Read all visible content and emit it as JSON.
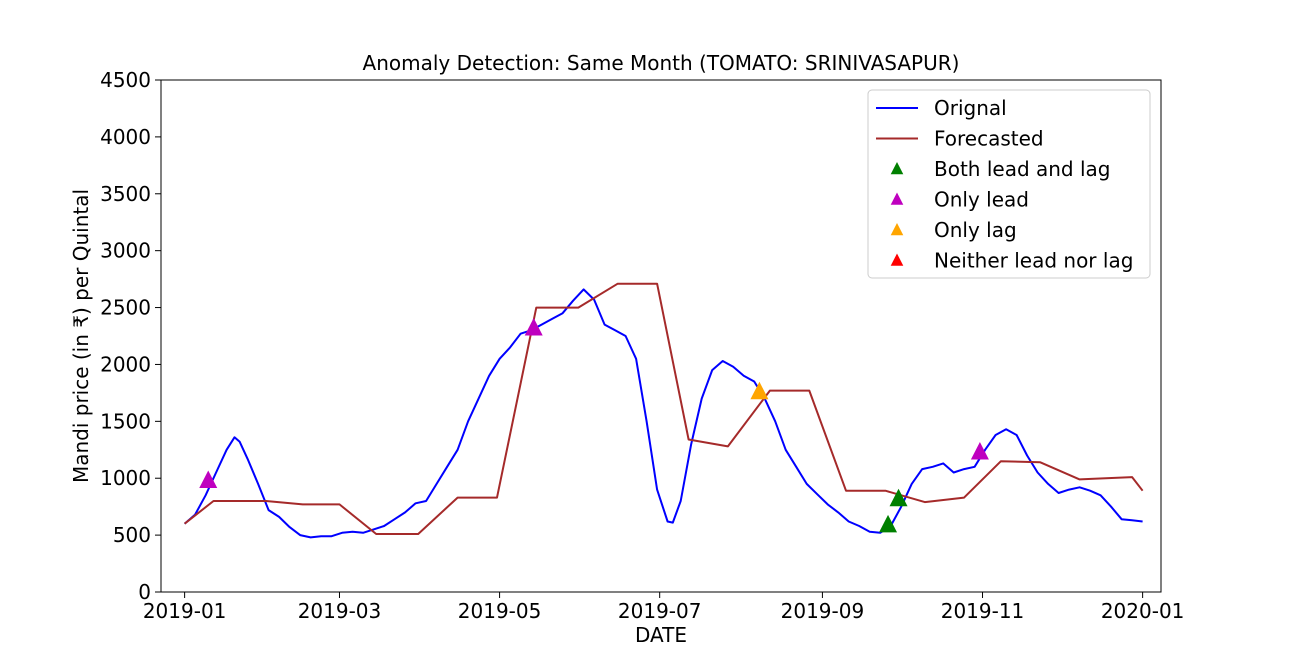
{
  "chart_data": {
    "type": "line",
    "title": "Anomaly Detection: Same Month (TOMATO: SRINIVASAPUR)",
    "xlabel": "DATE",
    "ylabel": "Mandi price (in ₹) per Quintal",
    "xlim": [
      "2018-12-23",
      "2020-01-08"
    ],
    "ylim": [
      0,
      4500
    ],
    "yticks": [
      0,
      500,
      1000,
      1500,
      2000,
      2500,
      3000,
      3500,
      4000,
      4500
    ],
    "xticks": [
      "2019-01-01",
      "2019-03-01",
      "2019-05-01",
      "2019-07-01",
      "2019-09-01",
      "2019-11-01",
      "2020-01-01"
    ],
    "xtick_labels": [
      "2019-01",
      "2019-03",
      "2019-05",
      "2019-07",
      "2019-09",
      "2019-11",
      "2020-01"
    ],
    "legend_position": "top-right",
    "grid": false,
    "series": [
      {
        "name": "Orignal",
        "kind": "line",
        "color": "#0000ff",
        "points": [
          [
            "2019-01-01",
            600
          ],
          [
            "2019-01-05",
            680
          ],
          [
            "2019-01-09",
            850
          ],
          [
            "2019-01-13",
            1050
          ],
          [
            "2019-01-17",
            1250
          ],
          [
            "2019-01-20",
            1360
          ],
          [
            "2019-01-22",
            1320
          ],
          [
            "2019-01-25",
            1170
          ],
          [
            "2019-01-29",
            950
          ],
          [
            "2019-02-02",
            720
          ],
          [
            "2019-02-06",
            660
          ],
          [
            "2019-02-10",
            570
          ],
          [
            "2019-02-14",
            500
          ],
          [
            "2019-02-18",
            480
          ],
          [
            "2019-02-22",
            490
          ],
          [
            "2019-02-26",
            490
          ],
          [
            "2019-03-02",
            520
          ],
          [
            "2019-03-06",
            530
          ],
          [
            "2019-03-10",
            520
          ],
          [
            "2019-03-14",
            550
          ],
          [
            "2019-03-18",
            580
          ],
          [
            "2019-03-22",
            640
          ],
          [
            "2019-03-26",
            700
          ],
          [
            "2019-03-30",
            780
          ],
          [
            "2019-04-03",
            800
          ],
          [
            "2019-04-07",
            950
          ],
          [
            "2019-04-11",
            1100
          ],
          [
            "2019-04-15",
            1250
          ],
          [
            "2019-04-19",
            1500
          ],
          [
            "2019-04-23",
            1700
          ],
          [
            "2019-04-27",
            1900
          ],
          [
            "2019-05-01",
            2050
          ],
          [
            "2019-05-05",
            2150
          ],
          [
            "2019-05-09",
            2270
          ],
          [
            "2019-05-13",
            2300
          ],
          [
            "2019-05-17",
            2350
          ],
          [
            "2019-05-21",
            2400
          ],
          [
            "2019-05-25",
            2450
          ],
          [
            "2019-05-29",
            2560
          ],
          [
            "2019-06-02",
            2660
          ],
          [
            "2019-06-06",
            2570
          ],
          [
            "2019-06-10",
            2350
          ],
          [
            "2019-06-14",
            2300
          ],
          [
            "2019-06-18",
            2250
          ],
          [
            "2019-06-22",
            2050
          ],
          [
            "2019-06-26",
            1500
          ],
          [
            "2019-06-30",
            900
          ],
          [
            "2019-07-04",
            620
          ],
          [
            "2019-07-06",
            610
          ],
          [
            "2019-07-09",
            800
          ],
          [
            "2019-07-13",
            1300
          ],
          [
            "2019-07-17",
            1700
          ],
          [
            "2019-07-21",
            1950
          ],
          [
            "2019-07-25",
            2030
          ],
          [
            "2019-07-29",
            1980
          ],
          [
            "2019-08-02",
            1900
          ],
          [
            "2019-08-06",
            1850
          ],
          [
            "2019-08-10",
            1700
          ],
          [
            "2019-08-14",
            1500
          ],
          [
            "2019-08-18",
            1250
          ],
          [
            "2019-08-22",
            1100
          ],
          [
            "2019-08-26",
            950
          ],
          [
            "2019-08-30",
            860
          ],
          [
            "2019-09-03",
            770
          ],
          [
            "2019-09-07",
            700
          ],
          [
            "2019-09-11",
            620
          ],
          [
            "2019-09-15",
            580
          ],
          [
            "2019-09-19",
            530
          ],
          [
            "2019-09-23",
            520
          ],
          [
            "2019-09-27",
            580
          ],
          [
            "2019-10-01",
            750
          ],
          [
            "2019-10-05",
            950
          ],
          [
            "2019-10-09",
            1080
          ],
          [
            "2019-10-13",
            1100
          ],
          [
            "2019-10-17",
            1130
          ],
          [
            "2019-10-21",
            1050
          ],
          [
            "2019-10-25",
            1080
          ],
          [
            "2019-10-29",
            1100
          ],
          [
            "2019-11-02",
            1250
          ],
          [
            "2019-11-06",
            1380
          ],
          [
            "2019-11-10",
            1430
          ],
          [
            "2019-11-14",
            1380
          ],
          [
            "2019-11-18",
            1200
          ],
          [
            "2019-11-22",
            1050
          ],
          [
            "2019-11-26",
            950
          ],
          [
            "2019-11-30",
            870
          ],
          [
            "2019-12-04",
            900
          ],
          [
            "2019-12-08",
            920
          ],
          [
            "2019-12-12",
            890
          ],
          [
            "2019-12-16",
            850
          ],
          [
            "2019-12-20",
            750
          ],
          [
            "2019-12-24",
            640
          ],
          [
            "2019-12-28",
            630
          ],
          [
            "2020-01-01",
            620
          ]
        ]
      },
      {
        "name": "Forecasted",
        "kind": "line",
        "color": "#a52a2a",
        "points": [
          [
            "2019-01-01",
            600
          ],
          [
            "2019-01-12",
            800
          ],
          [
            "2019-02-01",
            800
          ],
          [
            "2019-02-15",
            770
          ],
          [
            "2019-03-01",
            770
          ],
          [
            "2019-03-15",
            510
          ],
          [
            "2019-03-31",
            510
          ],
          [
            "2019-04-15",
            830
          ],
          [
            "2019-04-30",
            830
          ],
          [
            "2019-05-15",
            2500
          ],
          [
            "2019-05-31",
            2500
          ],
          [
            "2019-06-15",
            2710
          ],
          [
            "2019-06-30",
            2710
          ],
          [
            "2019-07-12",
            1340
          ],
          [
            "2019-07-27",
            1280
          ],
          [
            "2019-08-12",
            1770
          ],
          [
            "2019-08-27",
            1770
          ],
          [
            "2019-09-10",
            890
          ],
          [
            "2019-09-25",
            890
          ],
          [
            "2019-10-10",
            790
          ],
          [
            "2019-10-25",
            830
          ],
          [
            "2019-11-08",
            1150
          ],
          [
            "2019-11-23",
            1140
          ],
          [
            "2019-12-08",
            990
          ],
          [
            "2019-12-28",
            1010
          ],
          [
            "2020-01-01",
            890
          ]
        ]
      },
      {
        "name": "Both lead and lag",
        "kind": "marker",
        "color": "#008000",
        "points": [
          [
            "2019-09-26",
            590
          ],
          [
            "2019-09-30",
            820
          ]
        ]
      },
      {
        "name": "Only lead",
        "kind": "marker",
        "color": "#bf00bf",
        "points": [
          [
            "2019-01-10",
            980
          ],
          [
            "2019-05-14",
            2320
          ],
          [
            "2019-10-31",
            1230
          ]
        ]
      },
      {
        "name": "Only lag",
        "kind": "marker",
        "color": "#ffa500",
        "points": [
          [
            "2019-08-08",
            1760
          ]
        ]
      },
      {
        "name": "Neither lead nor lag",
        "kind": "marker",
        "color": "#ff0000",
        "points": []
      }
    ]
  }
}
